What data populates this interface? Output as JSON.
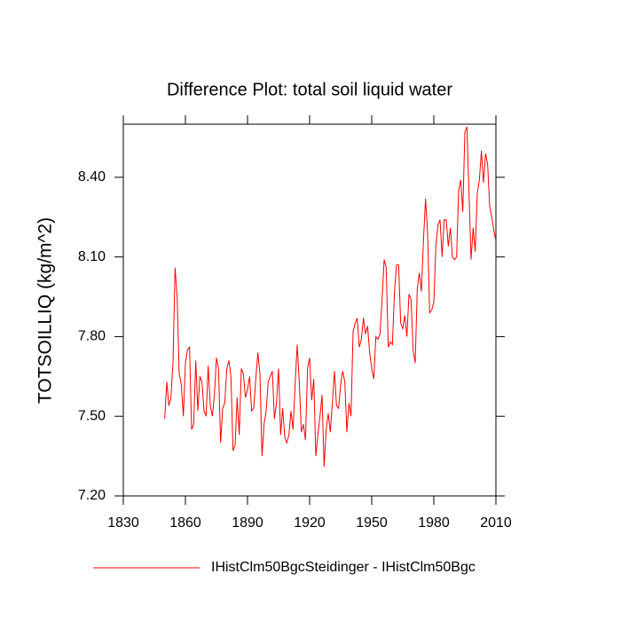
{
  "chart_data": {
    "type": "line",
    "title": "Difference Plot: total soil liquid water",
    "y_label": "TOTSOILLIQ  (kg/m^2)",
    "x": [
      1850,
      1851,
      1852,
      1853,
      1854,
      1855,
      1856,
      1857,
      1858,
      1859,
      1860,
      1861,
      1862,
      1863,
      1864,
      1865,
      1866,
      1867,
      1868,
      1869,
      1870,
      1871,
      1872,
      1873,
      1874,
      1875,
      1876,
      1877,
      1878,
      1879,
      1880,
      1881,
      1882,
      1883,
      1884,
      1885,
      1886,
      1887,
      1888,
      1889,
      1890,
      1891,
      1892,
      1893,
      1894,
      1895,
      1896,
      1897,
      1898,
      1899,
      1900,
      1901,
      1902,
      1903,
      1904,
      1905,
      1906,
      1907,
      1908,
      1909,
      1910,
      1911,
      1912,
      1913,
      1914,
      1915,
      1916,
      1917,
      1918,
      1919,
      1920,
      1921,
      1922,
      1923,
      1924,
      1925,
      1926,
      1927,
      1928,
      1929,
      1930,
      1931,
      1932,
      1933,
      1934,
      1935,
      1936,
      1937,
      1938,
      1939,
      1940,
      1941,
      1942,
      1943,
      1944,
      1945,
      1946,
      1947,
      1948,
      1949,
      1950,
      1951,
      1952,
      1953,
      1954,
      1955,
      1956,
      1957,
      1958,
      1959,
      1960,
      1961,
      1962,
      1963,
      1964,
      1965,
      1966,
      1967,
      1968,
      1969,
      1970,
      1971,
      1972,
      1973,
      1974,
      1975,
      1976,
      1977,
      1978,
      1979,
      1980,
      1981,
      1982,
      1983,
      1984,
      1985,
      1986,
      1987,
      1988,
      1989,
      1990,
      1991,
      1992,
      1993,
      1994,
      1995,
      1996,
      1997,
      1998,
      1999,
      2000,
      2001,
      2002,
      2003,
      2004,
      2005,
      2006,
      2007,
      2008,
      2009,
      2010
    ],
    "series": [
      {
        "name": "IHistClm50BgcSteidinger - IHistClm50Bgc",
        "color": "#ff0000",
        "values": [
          7.49,
          7.63,
          7.54,
          7.57,
          7.7,
          8.06,
          7.95,
          7.66,
          7.62,
          7.5,
          7.7,
          7.75,
          7.76,
          7.45,
          7.47,
          7.71,
          7.52,
          7.65,
          7.63,
          7.52,
          7.5,
          7.69,
          7.54,
          7.5,
          7.58,
          7.72,
          7.68,
          7.4,
          7.53,
          7.55,
          7.68,
          7.71,
          7.65,
          7.37,
          7.39,
          7.57,
          7.43,
          7.68,
          7.66,
          7.57,
          7.6,
          7.65,
          7.52,
          7.53,
          7.64,
          7.74,
          7.66,
          7.35,
          7.47,
          7.52,
          7.63,
          7.65,
          7.67,
          7.49,
          7.55,
          7.68,
          7.43,
          7.53,
          7.42,
          7.4,
          7.43,
          7.52,
          7.45,
          7.62,
          7.77,
          7.63,
          7.44,
          7.47,
          7.41,
          7.68,
          7.72,
          7.56,
          7.64,
          7.35,
          7.43,
          7.5,
          7.58,
          7.31,
          7.45,
          7.51,
          7.44,
          7.55,
          7.67,
          7.54,
          7.53,
          7.62,
          7.67,
          7.63,
          7.44,
          7.55,
          7.5,
          7.82,
          7.85,
          7.87,
          7.76,
          7.79,
          7.87,
          7.81,
          7.84,
          7.74,
          7.68,
          7.64,
          7.8,
          7.79,
          7.81,
          7.94,
          8.09,
          8.06,
          7.76,
          7.78,
          7.77,
          7.97,
          8.07,
          8.07,
          7.85,
          7.83,
          7.88,
          7.8,
          7.96,
          7.94,
          7.75,
          7.7,
          7.98,
          8.04,
          7.97,
          8.16,
          8.32,
          8.19,
          7.89,
          7.9,
          7.93,
          8.14,
          8.22,
          8.24,
          8.1,
          8.24,
          8.24,
          8.14,
          8.21,
          8.1,
          8.09,
          8.1,
          8.35,
          8.39,
          8.27,
          8.57,
          8.59,
          8.34,
          8.09,
          8.21,
          8.12,
          8.34,
          8.39,
          8.5,
          8.38,
          8.49,
          8.45,
          8.29,
          8.25,
          8.2,
          8.16
        ]
      }
    ],
    "xlim": [
      1830,
      2010
    ],
    "xticks": [
      1830,
      1860,
      1890,
      1920,
      1950,
      1980,
      2010
    ],
    "ylim": [
      7.2,
      8.6
    ],
    "yticks": [
      {
        "value": 7.2,
        "label": "7.20"
      },
      {
        "value": 7.5,
        "label": "7.50"
      },
      {
        "value": 7.8,
        "label": "7.80"
      },
      {
        "value": 8.1,
        "label": "8.10"
      },
      {
        "value": 8.4,
        "label": "8.40"
      }
    ],
    "grid": false,
    "legend_position": "bottom"
  }
}
